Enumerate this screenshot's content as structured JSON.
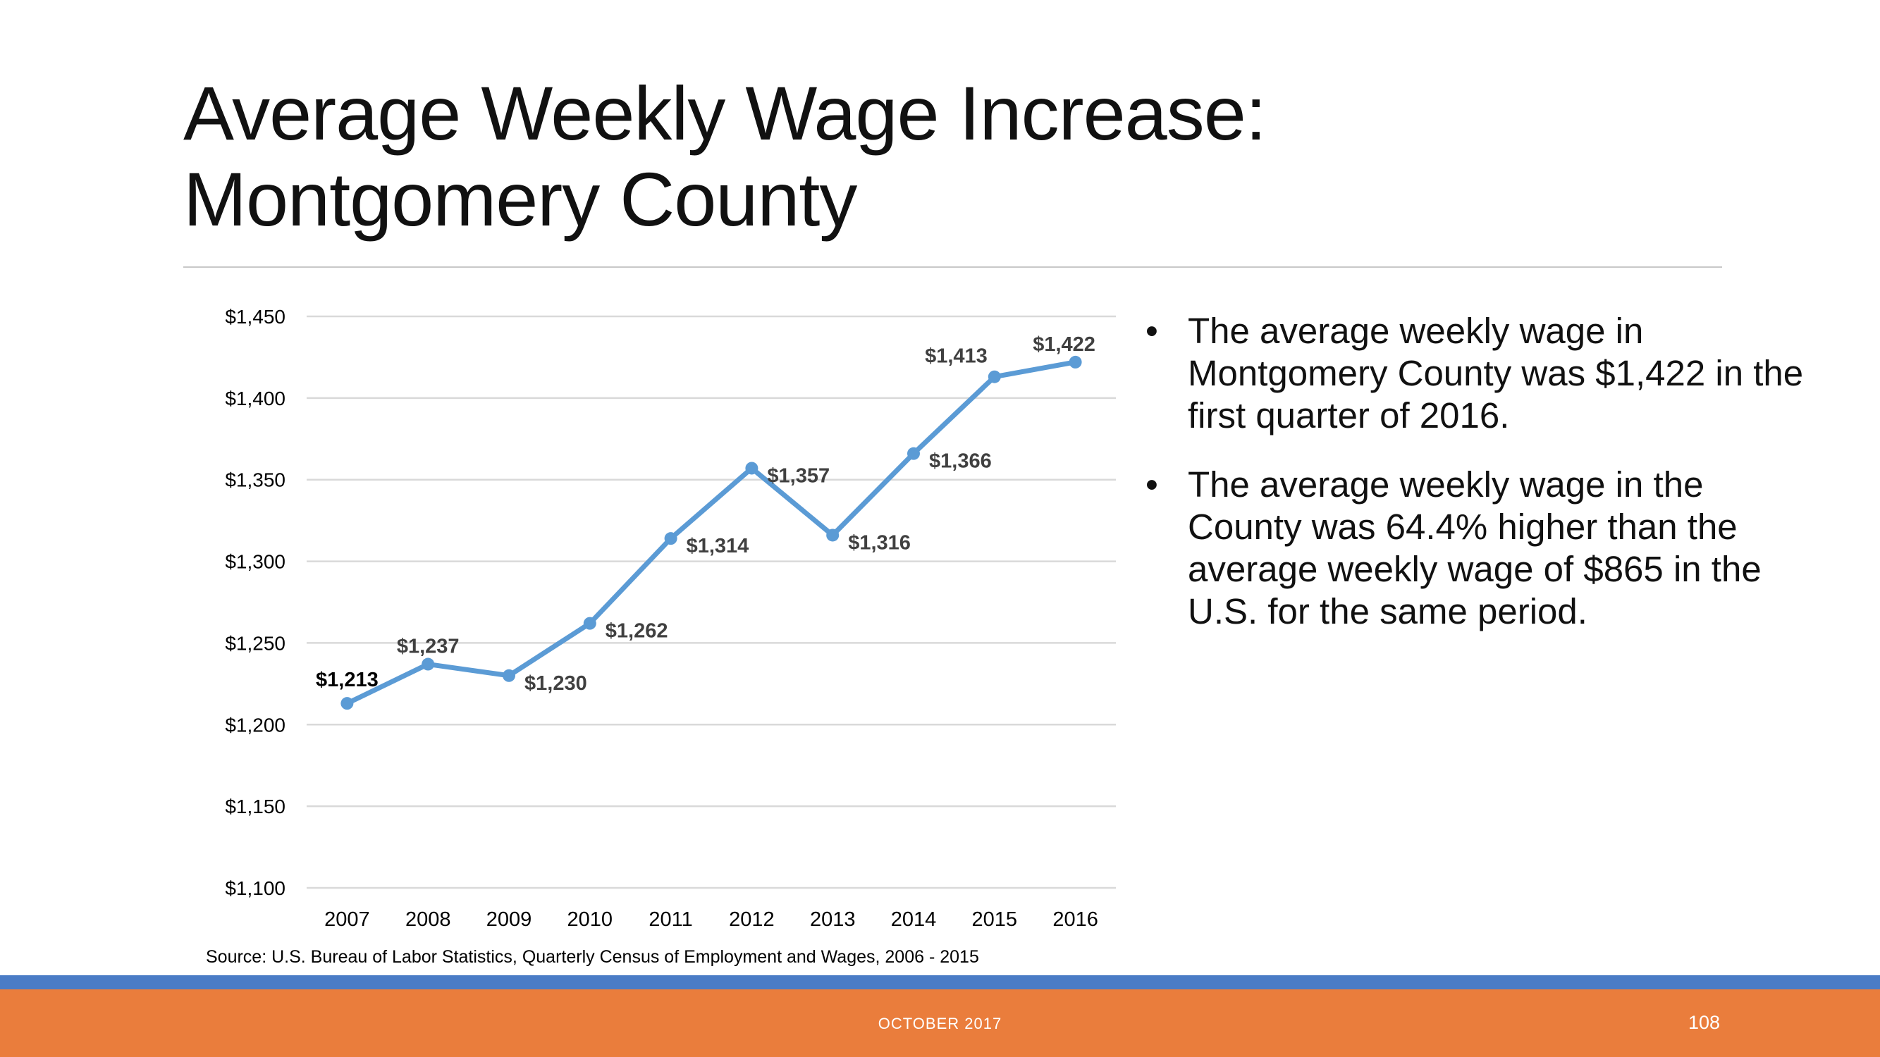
{
  "slide": {
    "title_line1": "Average Weekly Wage Increase:",
    "title_line2": "Montgomery County",
    "bullets": [
      "The average weekly wage in Montgomery County was $1,422 in the first quarter of 2016.",
      "The average weekly wage in the County was 64.4% higher than the average weekly wage of $865 in the U.S. for the same period."
    ],
    "source": "Source: U.S. Bureau of Labor Statistics, Quarterly Census of Employment and Wages, 2006 - 2015",
    "footer_date": "OCTOBER 2017",
    "page_number": "108"
  },
  "chart_data": {
    "type": "line",
    "title": "",
    "xlabel": "",
    "ylabel": "",
    "categories": [
      "2007",
      "2008",
      "2009",
      "2010",
      "2011",
      "2012",
      "2013",
      "2014",
      "2015",
      "2016"
    ],
    "series": [
      {
        "values": [
          1213,
          1237,
          1230,
          1262,
          1314,
          1357,
          1316,
          1366,
          1413,
          1422
        ],
        "labels": [
          "$1,213",
          "$1,237",
          "$1,230",
          "$1,262",
          "$1,314",
          "$1,357",
          "$1,316",
          "$1,366",
          "$1,413",
          "$1,422"
        ],
        "color": "#5b9bd5"
      }
    ],
    "ylim": [
      1100,
      1450
    ],
    "yticks": [
      1100,
      1150,
      1200,
      1250,
      1300,
      1350,
      1400,
      1450
    ],
    "ytick_labels": [
      "$1,100",
      "$1,150",
      "$1,200",
      "$1,250",
      "$1,300",
      "$1,350",
      "$1,400",
      "$1,450"
    ],
    "grid": true,
    "legend": "none",
    "gridline_color": "#d9d9d9",
    "label_color": "#404040"
  }
}
